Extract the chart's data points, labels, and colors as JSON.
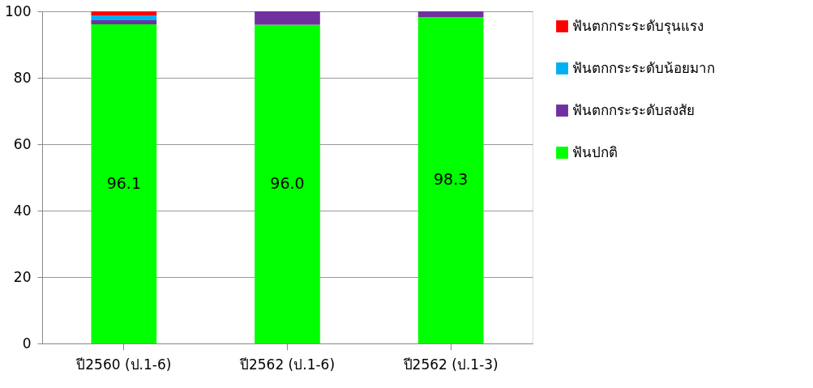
{
  "chart_data": {
    "type": "bar",
    "stacked": true,
    "categories": [
      "ปี2560 (ป.1-6)",
      "ปี2562 (ป.1-6)",
      "ปี2562 (ป.1-3)"
    ],
    "series": [
      {
        "name": "ฟันปกติ",
        "color": "#00ff00",
        "values": [
          96.1,
          96.0,
          98.3
        ],
        "value_labels": [
          "96.1",
          "96.0",
          "98.3"
        ]
      },
      {
        "name": "ฟันตกกระระดับสงสัย",
        "color": "#7030a0",
        "values": [
          1.2,
          4.0,
          1.7
        ]
      },
      {
        "name": "ฟันตกกระระดับน้อยมาก",
        "color": "#00b0f0",
        "values": [
          1.5,
          0,
          0
        ]
      },
      {
        "name": "ฟันตกกระระดับรุนแรง",
        "color": "#ff0000",
        "values": [
          1.2,
          0,
          0
        ]
      }
    ],
    "ylim": [
      0,
      100
    ],
    "yticks": [
      0,
      20,
      40,
      60,
      80,
      100
    ],
    "grid": "y",
    "legend": "right"
  }
}
